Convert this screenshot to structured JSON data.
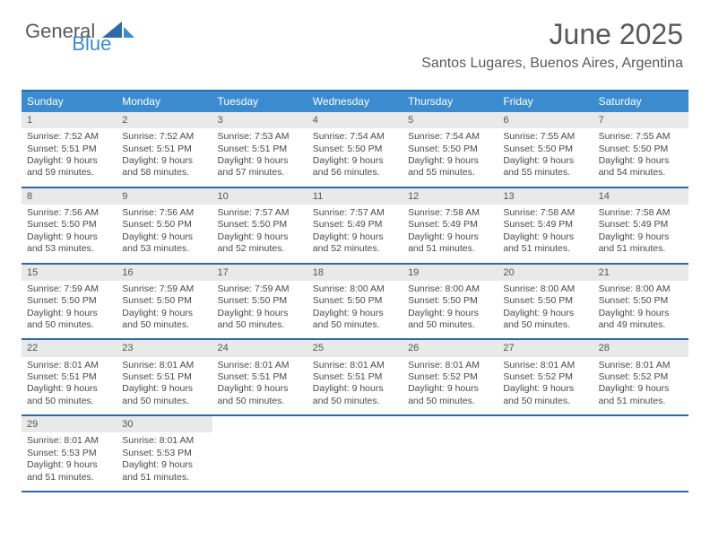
{
  "brand": {
    "part1": "General",
    "part2": "Blue"
  },
  "colors": {
    "accent": "#3b8bd0",
    "accent_dark": "#2f6aa8",
    "daynum_bg": "#e9e9e9",
    "text": "#4a4a4a",
    "header_text": "#5a5a5a"
  },
  "title": "June 2025",
  "subtitle": "Santos Lugares, Buenos Aires, Argentina",
  "day_names": [
    "Sunday",
    "Monday",
    "Tuesday",
    "Wednesday",
    "Thursday",
    "Friday",
    "Saturday"
  ],
  "weeks": [
    [
      {
        "n": "1",
        "sr": "Sunrise: 7:52 AM",
        "ss": "Sunset: 5:51 PM",
        "d1": "Daylight: 9 hours",
        "d2": "and 59 minutes."
      },
      {
        "n": "2",
        "sr": "Sunrise: 7:52 AM",
        "ss": "Sunset: 5:51 PM",
        "d1": "Daylight: 9 hours",
        "d2": "and 58 minutes."
      },
      {
        "n": "3",
        "sr": "Sunrise: 7:53 AM",
        "ss": "Sunset: 5:51 PM",
        "d1": "Daylight: 9 hours",
        "d2": "and 57 minutes."
      },
      {
        "n": "4",
        "sr": "Sunrise: 7:54 AM",
        "ss": "Sunset: 5:50 PM",
        "d1": "Daylight: 9 hours",
        "d2": "and 56 minutes."
      },
      {
        "n": "5",
        "sr": "Sunrise: 7:54 AM",
        "ss": "Sunset: 5:50 PM",
        "d1": "Daylight: 9 hours",
        "d2": "and 55 minutes."
      },
      {
        "n": "6",
        "sr": "Sunrise: 7:55 AM",
        "ss": "Sunset: 5:50 PM",
        "d1": "Daylight: 9 hours",
        "d2": "and 55 minutes."
      },
      {
        "n": "7",
        "sr": "Sunrise: 7:55 AM",
        "ss": "Sunset: 5:50 PM",
        "d1": "Daylight: 9 hours",
        "d2": "and 54 minutes."
      }
    ],
    [
      {
        "n": "8",
        "sr": "Sunrise: 7:56 AM",
        "ss": "Sunset: 5:50 PM",
        "d1": "Daylight: 9 hours",
        "d2": "and 53 minutes."
      },
      {
        "n": "9",
        "sr": "Sunrise: 7:56 AM",
        "ss": "Sunset: 5:50 PM",
        "d1": "Daylight: 9 hours",
        "d2": "and 53 minutes."
      },
      {
        "n": "10",
        "sr": "Sunrise: 7:57 AM",
        "ss": "Sunset: 5:50 PM",
        "d1": "Daylight: 9 hours",
        "d2": "and 52 minutes."
      },
      {
        "n": "11",
        "sr": "Sunrise: 7:57 AM",
        "ss": "Sunset: 5:49 PM",
        "d1": "Daylight: 9 hours",
        "d2": "and 52 minutes."
      },
      {
        "n": "12",
        "sr": "Sunrise: 7:58 AM",
        "ss": "Sunset: 5:49 PM",
        "d1": "Daylight: 9 hours",
        "d2": "and 51 minutes."
      },
      {
        "n": "13",
        "sr": "Sunrise: 7:58 AM",
        "ss": "Sunset: 5:49 PM",
        "d1": "Daylight: 9 hours",
        "d2": "and 51 minutes."
      },
      {
        "n": "14",
        "sr": "Sunrise: 7:58 AM",
        "ss": "Sunset: 5:49 PM",
        "d1": "Daylight: 9 hours",
        "d2": "and 51 minutes."
      }
    ],
    [
      {
        "n": "15",
        "sr": "Sunrise: 7:59 AM",
        "ss": "Sunset: 5:50 PM",
        "d1": "Daylight: 9 hours",
        "d2": "and 50 minutes."
      },
      {
        "n": "16",
        "sr": "Sunrise: 7:59 AM",
        "ss": "Sunset: 5:50 PM",
        "d1": "Daylight: 9 hours",
        "d2": "and 50 minutes."
      },
      {
        "n": "17",
        "sr": "Sunrise: 7:59 AM",
        "ss": "Sunset: 5:50 PM",
        "d1": "Daylight: 9 hours",
        "d2": "and 50 minutes."
      },
      {
        "n": "18",
        "sr": "Sunrise: 8:00 AM",
        "ss": "Sunset: 5:50 PM",
        "d1": "Daylight: 9 hours",
        "d2": "and 50 minutes."
      },
      {
        "n": "19",
        "sr": "Sunrise: 8:00 AM",
        "ss": "Sunset: 5:50 PM",
        "d1": "Daylight: 9 hours",
        "d2": "and 50 minutes."
      },
      {
        "n": "20",
        "sr": "Sunrise: 8:00 AM",
        "ss": "Sunset: 5:50 PM",
        "d1": "Daylight: 9 hours",
        "d2": "and 50 minutes."
      },
      {
        "n": "21",
        "sr": "Sunrise: 8:00 AM",
        "ss": "Sunset: 5:50 PM",
        "d1": "Daylight: 9 hours",
        "d2": "and 49 minutes."
      }
    ],
    [
      {
        "n": "22",
        "sr": "Sunrise: 8:01 AM",
        "ss": "Sunset: 5:51 PM",
        "d1": "Daylight: 9 hours",
        "d2": "and 50 minutes."
      },
      {
        "n": "23",
        "sr": "Sunrise: 8:01 AM",
        "ss": "Sunset: 5:51 PM",
        "d1": "Daylight: 9 hours",
        "d2": "and 50 minutes."
      },
      {
        "n": "24",
        "sr": "Sunrise: 8:01 AM",
        "ss": "Sunset: 5:51 PM",
        "d1": "Daylight: 9 hours",
        "d2": "and 50 minutes."
      },
      {
        "n": "25",
        "sr": "Sunrise: 8:01 AM",
        "ss": "Sunset: 5:51 PM",
        "d1": "Daylight: 9 hours",
        "d2": "and 50 minutes."
      },
      {
        "n": "26",
        "sr": "Sunrise: 8:01 AM",
        "ss": "Sunset: 5:52 PM",
        "d1": "Daylight: 9 hours",
        "d2": "and 50 minutes."
      },
      {
        "n": "27",
        "sr": "Sunrise: 8:01 AM",
        "ss": "Sunset: 5:52 PM",
        "d1": "Daylight: 9 hours",
        "d2": "and 50 minutes."
      },
      {
        "n": "28",
        "sr": "Sunrise: 8:01 AM",
        "ss": "Sunset: 5:52 PM",
        "d1": "Daylight: 9 hours",
        "d2": "and 51 minutes."
      }
    ],
    [
      {
        "n": "29",
        "sr": "Sunrise: 8:01 AM",
        "ss": "Sunset: 5:53 PM",
        "d1": "Daylight: 9 hours",
        "d2": "and 51 minutes."
      },
      {
        "n": "30",
        "sr": "Sunrise: 8:01 AM",
        "ss": "Sunset: 5:53 PM",
        "d1": "Daylight: 9 hours",
        "d2": "and 51 minutes."
      },
      {
        "empty": true
      },
      {
        "empty": true
      },
      {
        "empty": true
      },
      {
        "empty": true
      },
      {
        "empty": true
      }
    ]
  ]
}
